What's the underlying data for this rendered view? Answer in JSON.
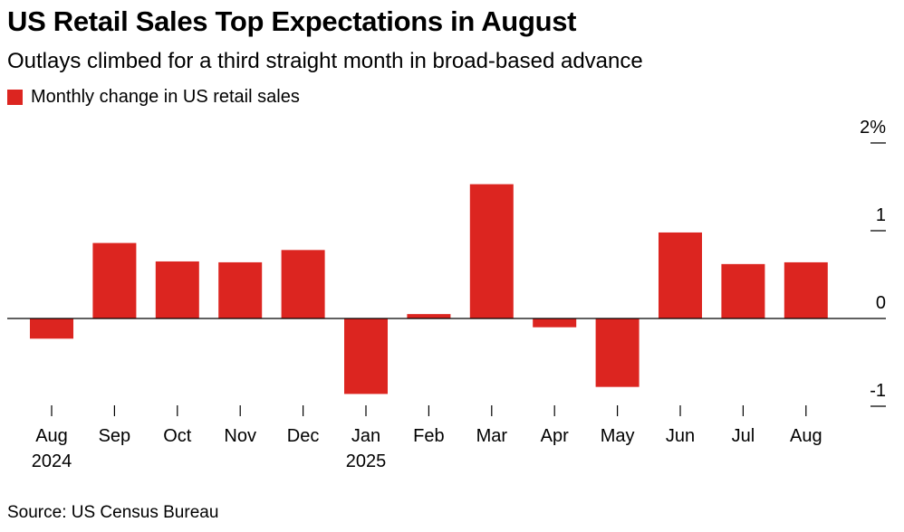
{
  "title": "US Retail Sales Top Expectations in August",
  "subtitle": "Outlays climbed for a third straight month in broad-based advance",
  "source": "Source: US Census Bureau",
  "colors": {
    "bar": "#dc2520",
    "axis": "#000000"
  },
  "chart_data": {
    "type": "bar",
    "title": "US Retail Sales Top Expectations in August",
    "subtitle": "Outlays climbed for a third straight month in broad-based advance",
    "legend": [
      "Monthly change in US retail sales"
    ],
    "legend_position": "top-left",
    "categories": [
      "Aug 2024",
      "Sep",
      "Oct",
      "Nov",
      "Dec",
      "Jan 2025",
      "Feb",
      "Mar",
      "Apr",
      "May",
      "Jun",
      "Jul",
      "Aug"
    ],
    "x_tick_labels": [
      {
        "month": "Aug",
        "year": "2024"
      },
      {
        "month": "Sep",
        "year": ""
      },
      {
        "month": "Oct",
        "year": ""
      },
      {
        "month": "Nov",
        "year": ""
      },
      {
        "month": "Dec",
        "year": ""
      },
      {
        "month": "Jan",
        "year": "2025"
      },
      {
        "month": "Feb",
        "year": ""
      },
      {
        "month": "Mar",
        "year": ""
      },
      {
        "month": "Apr",
        "year": ""
      },
      {
        "month": "May",
        "year": ""
      },
      {
        "month": "Jun",
        "year": ""
      },
      {
        "month": "Jul",
        "year": ""
      },
      {
        "month": "Aug",
        "year": ""
      }
    ],
    "series": [
      {
        "name": "Monthly change in US retail sales",
        "values": [
          -0.23,
          0.86,
          0.65,
          0.64,
          0.78,
          -0.86,
          0.05,
          1.53,
          -0.1,
          -0.78,
          0.98,
          0.62,
          0.64
        ]
      }
    ],
    "ylim": [
      -1,
      2
    ],
    "y_ticks": [
      {
        "value": 2,
        "label": "2%"
      },
      {
        "value": 1,
        "label": "1"
      },
      {
        "value": 0,
        "label": "0"
      },
      {
        "value": -1,
        "label": "-1"
      }
    ],
    "y_axis_side": "right",
    "grid": false,
    "xlabel": "",
    "ylabel": ""
  }
}
